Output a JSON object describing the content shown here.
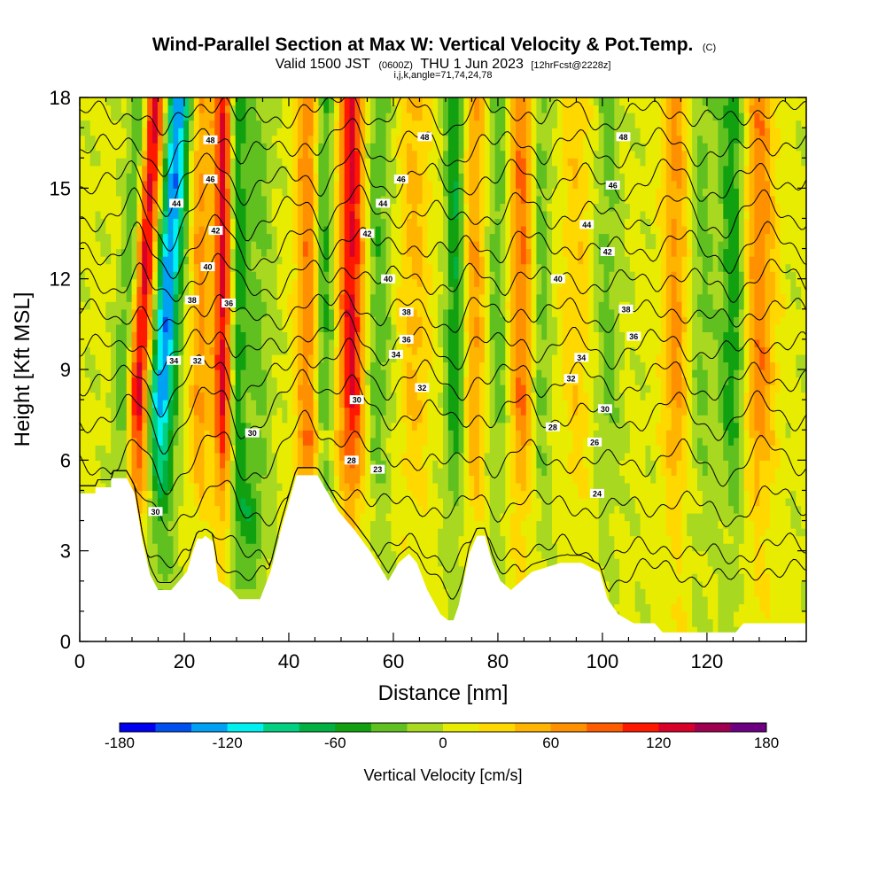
{
  "chart_data": {
    "type": "heatmap",
    "title": "Wind-Parallel Section at Max W: Vertical Velocity & Pot.Temp.",
    "title_mark": "(C)",
    "subtitle_parts": [
      "Valid 1500 JST",
      "(0600Z)",
      "THU 1 Jun 2023",
      "[12hrFcst@2228z]"
    ],
    "subtitle2": "i,j,k,angle=71,74,24,78",
    "xlabel": "Distance [nm]",
    "ylabel": "Height [Kft MSL]",
    "xlim": [
      0,
      139
    ],
    "ylim": [
      0,
      18
    ],
    "x_ticks": [
      0,
      20,
      40,
      60,
      80,
      100,
      120
    ],
    "y_ticks": [
      0,
      3,
      6,
      9,
      12,
      15,
      18
    ],
    "colorbar": {
      "title": "Vertical Velocity [cm/s]",
      "min": -180,
      "max": 180,
      "step": 20,
      "tick_labels": [
        "-180",
        "-120",
        "-60",
        "0",
        "60",
        "120",
        "180"
      ],
      "colors": [
        "#0000f0",
        "#0050f0",
        "#00a0f5",
        "#00f0f0",
        "#00d080",
        "#00b040",
        "#10a010",
        "#60c020",
        "#a8d820",
        "#e8ec00",
        "#ffd800",
        "#ffb400",
        "#ff9000",
        "#ff5c00",
        "#ff1800",
        "#d80028",
        "#a00050",
        "#6c0080"
      ]
    },
    "velocity_columns": [
      {
        "x": 8.5,
        "w": -60,
        "width": 2.0
      },
      {
        "x": 11.0,
        "w": 140,
        "width": 2.2
      },
      {
        "x": 15.5,
        "w": -140,
        "width": 2.6
      },
      {
        "x": 23.0,
        "w": 60,
        "width": 2.0
      },
      {
        "x": 27.5,
        "w": 130,
        "width": 1.8
      },
      {
        "x": 30.0,
        "w": -60,
        "width": 1.8
      },
      {
        "x": 34.0,
        "w": -30,
        "width": 3.0
      },
      {
        "x": 44.0,
        "w": 80,
        "width": 2.5
      },
      {
        "x": 46.5,
        "w": -70,
        "width": 2.0
      },
      {
        "x": 52.0,
        "w": 120,
        "width": 2.5
      },
      {
        "x": 57.0,
        "w": -40,
        "width": 2.5
      },
      {
        "x": 64.0,
        "w": 40,
        "width": 3.0
      },
      {
        "x": 72.0,
        "w": -70,
        "width": 2.0
      },
      {
        "x": 75.5,
        "w": 60,
        "width": 2.5
      },
      {
        "x": 80.0,
        "w": -40,
        "width": 2.5
      },
      {
        "x": 84.5,
        "w": 80,
        "width": 2.5
      },
      {
        "x": 88.0,
        "w": -40,
        "width": 2.0
      },
      {
        "x": 95.0,
        "w": 30,
        "width": 3.0
      },
      {
        "x": 101.0,
        "w": -30,
        "width": 2.5
      },
      {
        "x": 114.0,
        "w": 60,
        "width": 2.5
      },
      {
        "x": 119.0,
        "w": -30,
        "width": 2.5
      },
      {
        "x": 125.0,
        "w": -60,
        "width": 2.5
      },
      {
        "x": 130.0,
        "w": 70,
        "width": 3.0
      }
    ],
    "terrain": [
      [
        0,
        4.9
      ],
      [
        3,
        4.9
      ],
      [
        3,
        5.1
      ],
      [
        6,
        5.1
      ],
      [
        6,
        5.4
      ],
      [
        9,
        5.4
      ],
      [
        10.5,
        4.9
      ],
      [
        12,
        3.3
      ],
      [
        13.5,
        2.2
      ],
      [
        15,
        1.7
      ],
      [
        17.5,
        1.7
      ],
      [
        19,
        2.0
      ],
      [
        20.5,
        2.3
      ],
      [
        21.5,
        2.9
      ],
      [
        22.5,
        3.4
      ],
      [
        23.5,
        3.4
      ],
      [
        24,
        3.5
      ],
      [
        25.5,
        3.3
      ],
      [
        26.5,
        2.0
      ],
      [
        29,
        1.7
      ],
      [
        30.5,
        1.4
      ],
      [
        34.5,
        1.4
      ],
      [
        36.5,
        2.3
      ],
      [
        38.5,
        3.7
      ],
      [
        40.5,
        4.9
      ],
      [
        41.5,
        5.5
      ],
      [
        45.5,
        5.5
      ],
      [
        47.5,
        4.9
      ],
      [
        49.5,
        4.3
      ],
      [
        52.5,
        3.7
      ],
      [
        55.5,
        3.0
      ],
      [
        58,
        2.3
      ],
      [
        59,
        2.0
      ],
      [
        60,
        2.3
      ],
      [
        61,
        2.6
      ],
      [
        63,
        2.9
      ],
      [
        64.5,
        2.6
      ],
      [
        66.5,
        1.7
      ],
      [
        69,
        0.9
      ],
      [
        70.5,
        0.7
      ],
      [
        71.5,
        0.7
      ],
      [
        72.5,
        1.2
      ],
      [
        74.5,
        2.9
      ],
      [
        76,
        3.5
      ],
      [
        77.5,
        3.5
      ],
      [
        79,
        2.6
      ],
      [
        80.5,
        2.0
      ],
      [
        82.5,
        1.7
      ],
      [
        86.5,
        2.3
      ],
      [
        92,
        2.6
      ],
      [
        96,
        2.6
      ],
      [
        99.5,
        2.3
      ],
      [
        101,
        1.4
      ],
      [
        103,
        0.9
      ],
      [
        106,
        0.6
      ],
      [
        110,
        0.6
      ],
      [
        111.5,
        0.3
      ],
      [
        115,
        0.3
      ],
      [
        118.5,
        0.3
      ],
      [
        121,
        0.3
      ],
      [
        125.5,
        0.3
      ],
      [
        127,
        0.6
      ],
      [
        139,
        0.6
      ]
    ],
    "theta_levels": [
      23,
      24,
      26,
      28,
      30,
      32,
      34,
      36,
      38,
      40,
      42,
      44,
      46,
      48
    ],
    "contour_labels": [
      {
        "text": "48",
        "x": 25,
        "y": 16.6
      },
      {
        "text": "48",
        "x": 66,
        "y": 16.7
      },
      {
        "text": "48",
        "x": 104,
        "y": 16.7
      },
      {
        "text": "46",
        "x": 25,
        "y": 15.3
      },
      {
        "text": "46",
        "x": 61.5,
        "y": 15.3
      },
      {
        "text": "46",
        "x": 102,
        "y": 15.1
      },
      {
        "text": "44",
        "x": 18.5,
        "y": 14.5
      },
      {
        "text": "44",
        "x": 58,
        "y": 14.5
      },
      {
        "text": "44",
        "x": 97,
        "y": 13.8
      },
      {
        "text": "42",
        "x": 26,
        "y": 13.6
      },
      {
        "text": "42",
        "x": 55,
        "y": 13.5
      },
      {
        "text": "42",
        "x": 101,
        "y": 12.9
      },
      {
        "text": "40",
        "x": 24.5,
        "y": 12.4
      },
      {
        "text": "40",
        "x": 59,
        "y": 12.0
      },
      {
        "text": "40",
        "x": 91.5,
        "y": 12.0
      },
      {
        "text": "38",
        "x": 21.5,
        "y": 11.3
      },
      {
        "text": "36",
        "x": 28.5,
        "y": 11.2
      },
      {
        "text": "38",
        "x": 62.5,
        "y": 10.9
      },
      {
        "text": "38",
        "x": 104.5,
        "y": 11.0
      },
      {
        "text": "36",
        "x": 62.5,
        "y": 10.0
      },
      {
        "text": "36",
        "x": 106,
        "y": 10.1
      },
      {
        "text": "34",
        "x": 18,
        "y": 9.3
      },
      {
        "text": "32",
        "x": 22.5,
        "y": 9.3
      },
      {
        "text": "34",
        "x": 60.5,
        "y": 9.5
      },
      {
        "text": "34",
        "x": 96,
        "y": 9.4
      },
      {
        "text": "32",
        "x": 65.5,
        "y": 8.4
      },
      {
        "text": "32",
        "x": 94,
        "y": 8.7
      },
      {
        "text": "30",
        "x": 53,
        "y": 8.0
      },
      {
        "text": "30",
        "x": 33,
        "y": 6.9
      },
      {
        "text": "30",
        "x": 100.5,
        "y": 7.7
      },
      {
        "text": "28",
        "x": 90.5,
        "y": 7.1
      },
      {
        "text": "26",
        "x": 98.5,
        "y": 6.6
      },
      {
        "text": "28",
        "x": 52,
        "y": 6.0
      },
      {
        "text": "23",
        "x": 57,
        "y": 5.7
      },
      {
        "text": "24",
        "x": 99,
        "y": 4.9
      },
      {
        "text": "30",
        "x": 14.5,
        "y": 4.3
      }
    ]
  }
}
